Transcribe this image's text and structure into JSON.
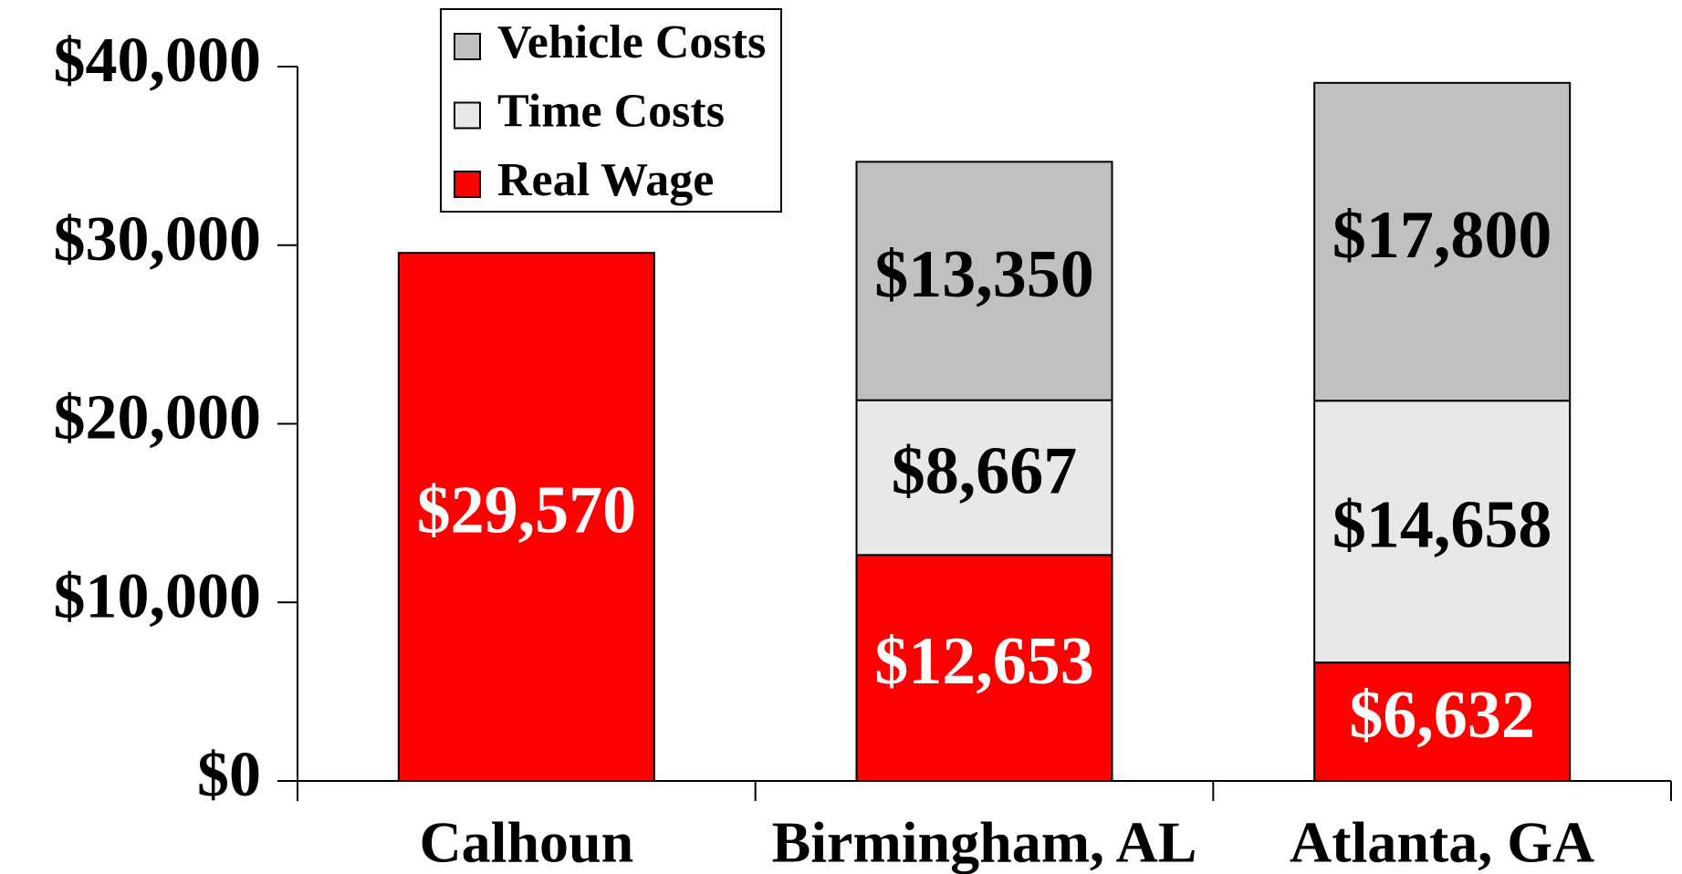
{
  "chart_data": {
    "type": "stacked_bar",
    "categories": [
      "Calhoun",
      "Birmingham, AL",
      "Atlanta, GA"
    ],
    "series": [
      {
        "name": "Real Wage",
        "color": "#ff0000",
        "label_color": "#ffffff",
        "values": [
          29570,
          12653,
          6632
        ],
        "value_labels": [
          "$29,570",
          "$12,653",
          "$6,632"
        ]
      },
      {
        "name": "Time Costs",
        "color": "#e8e8e8",
        "label_color": "#000000",
        "values": [
          null,
          8667,
          14658
        ],
        "value_labels": [
          null,
          "$8,667",
          "$14,658"
        ]
      },
      {
        "name": "Vehicle Costs",
        "color": "#c0c0c0",
        "label_color": "#000000",
        "values": [
          null,
          13350,
          17800
        ],
        "value_labels": [
          null,
          "$13,350",
          "$17,800"
        ]
      }
    ],
    "ylim": [
      0,
      40000
    ],
    "yticks": [
      {
        "value": 0,
        "label": "$0"
      },
      {
        "value": 10000,
        "label": "$10,000"
      },
      {
        "value": 20000,
        "label": "$20,000"
      },
      {
        "value": 30000,
        "label": "$30,000"
      },
      {
        "value": 40000,
        "label": "$40,000"
      }
    ],
    "legend": "top-left"
  }
}
